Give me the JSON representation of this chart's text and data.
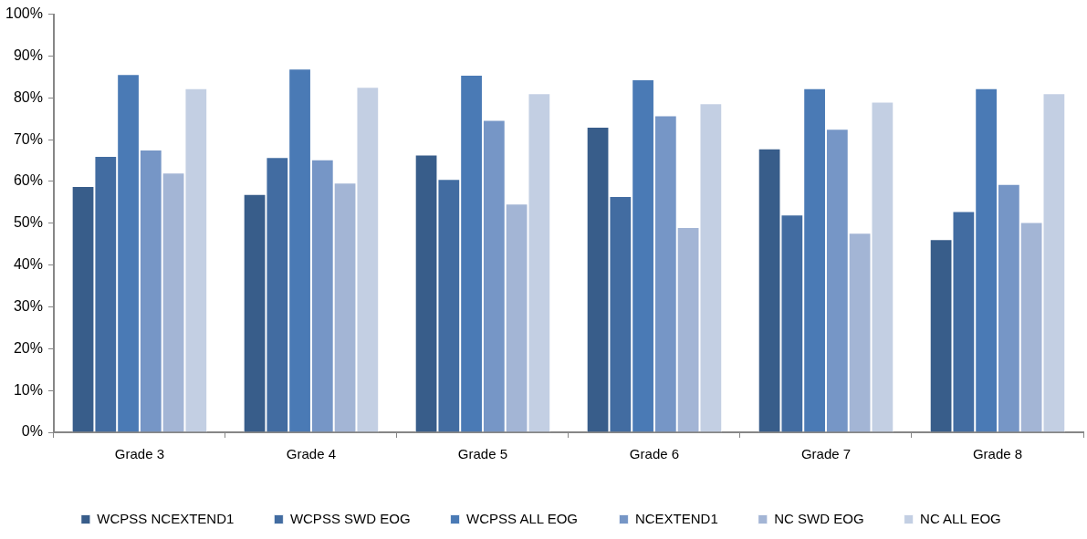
{
  "chart_data": {
    "type": "bar",
    "categories": [
      "Grade 3",
      "Grade 4",
      "Grade 5",
      "Grade 6",
      "Grade 7",
      "Grade 8"
    ],
    "series": [
      {
        "name": "WCPSS NCEXTEND1",
        "color": "#385d8a",
        "values": [
          58.9,
          57.0,
          66.4,
          73.1,
          67.9,
          46.2
        ]
      },
      {
        "name": "WCPSS SWD EOG",
        "color": "#426ca1",
        "values": [
          66.1,
          65.8,
          60.6,
          56.5,
          52.1,
          52.9
        ]
      },
      {
        "name": "WCPSS ALL EOG",
        "color": "#4a7ab5",
        "values": [
          85.7,
          87.0,
          85.5,
          84.4,
          82.3,
          82.3
        ]
      },
      {
        "name": "NCEXTEND1",
        "color": "#7696c6",
        "values": [
          67.6,
          65.3,
          74.7,
          75.8,
          72.6,
          59.4
        ]
      },
      {
        "name": "NC SWD EOG",
        "color": "#a3b5d5",
        "values": [
          62.1,
          59.7,
          54.7,
          49.1,
          47.7,
          50.3
        ]
      },
      {
        "name": "NC ALL EOG",
        "color": "#c3cfe3",
        "values": [
          82.3,
          82.6,
          81.1,
          78.7,
          79.1,
          81.1
        ]
      }
    ],
    "ylim": [
      0,
      100
    ],
    "yticks": [
      {
        "value": 0,
        "label": "0%"
      },
      {
        "value": 10,
        "label": "10%"
      },
      {
        "value": 20,
        "label": "20%"
      },
      {
        "value": 30,
        "label": "30%"
      },
      {
        "value": 40,
        "label": "40%"
      },
      {
        "value": 50,
        "label": "50%"
      },
      {
        "value": 60,
        "label": "60%"
      },
      {
        "value": 70,
        "label": "70%"
      },
      {
        "value": 80,
        "label": "80%"
      },
      {
        "value": 90,
        "label": "90%"
      },
      {
        "value": 100,
        "label": "100%"
      }
    ],
    "grid": false,
    "legend": "bottom"
  }
}
